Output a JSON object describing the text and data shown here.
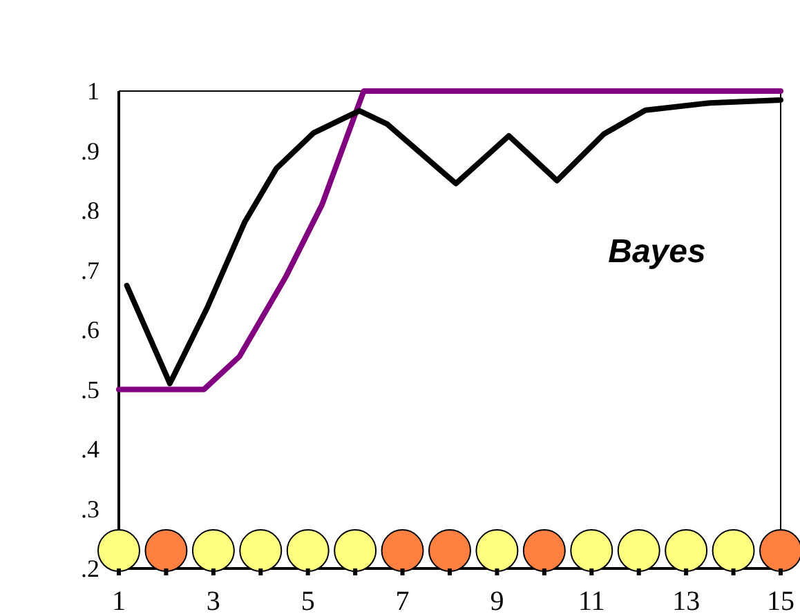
{
  "chart_data": {
    "type": "line",
    "xlim": [
      1,
      15
    ],
    "ylim": [
      0.2,
      1
    ],
    "xticks": [
      1,
      {
        "value": 2,
        "label": null
      },
      3,
      {
        "value": 4,
        "label": null
      },
      5,
      {
        "value": 6,
        "label": null
      },
      7,
      {
        "value": 8,
        "label": null
      },
      9,
      {
        "value": 10,
        "label": null
      },
      11,
      {
        "value": 12,
        "label": null
      },
      13,
      {
        "value": 14,
        "label": null
      },
      15
    ],
    "yticks": [
      {
        "value": 0.2,
        "label": ".2"
      },
      {
        "value": 0.3,
        "label": ".3"
      },
      {
        "value": 0.4,
        "label": ".4"
      },
      {
        "value": 0.5,
        "label": ".5"
      },
      {
        "value": 0.6,
        "label": ".6"
      },
      {
        "value": 0.7,
        "label": ".7"
      },
      {
        "value": 0.8,
        "label": ".8"
      },
      {
        "value": 0.9,
        "label": ".9"
      },
      {
        "value": 1,
        "label": "1"
      }
    ],
    "grid": false,
    "line_style": "solid",
    "annotations": [
      "Bayes"
    ],
    "series": [
      {
        "type": "line",
        "color": "#800080",
        "marker": "none",
        "x": [
          1,
          2.8,
          3.55,
          4.54,
          5.3,
          6.18,
          15
        ],
        "values": [
          0.5,
          0.5,
          0.555,
          0.69,
          0.81,
          1,
          1
        ]
      },
      {
        "type": "line",
        "color": "#000000",
        "marker": "none",
        "x": [
          1.17,
          2.08,
          2.87,
          3.66,
          4.33,
          5.12,
          6.09,
          6.67,
          8.13,
          9.25,
          10.27,
          11.26,
          12.14,
          13.5,
          15
        ],
        "values": [
          0.674,
          0.51,
          0.637,
          0.78,
          0.87,
          0.93,
          0.967,
          0.945,
          0.845,
          0.925,
          0.85,
          0.928,
          0.968,
          0.98,
          0.985
        ]
      },
      {
        "type": "scatter",
        "marker": "circle",
        "x": [
          1,
          2,
          3,
          4,
          5,
          6,
          7,
          8,
          9,
          10,
          11,
          12,
          13,
          14,
          15
        ],
        "values": [
          0.23,
          0.23,
          0.23,
          0.23,
          0.23,
          0.23,
          0.23,
          0.23,
          0.23,
          0.23,
          0.23,
          0.23,
          0.23,
          0.23,
          0.23
        ],
        "colors": [
          "#ffff80",
          "#ff8040",
          "#ffff80",
          "#ffff80",
          "#ffff80",
          "#ffff80",
          "#ff8040",
          "#ff8040",
          "#ffff80",
          "#ff8040",
          "#ffff80",
          "#ffff80",
          "#ffff80",
          "#ffff80",
          "#ff8040"
        ]
      }
    ]
  }
}
